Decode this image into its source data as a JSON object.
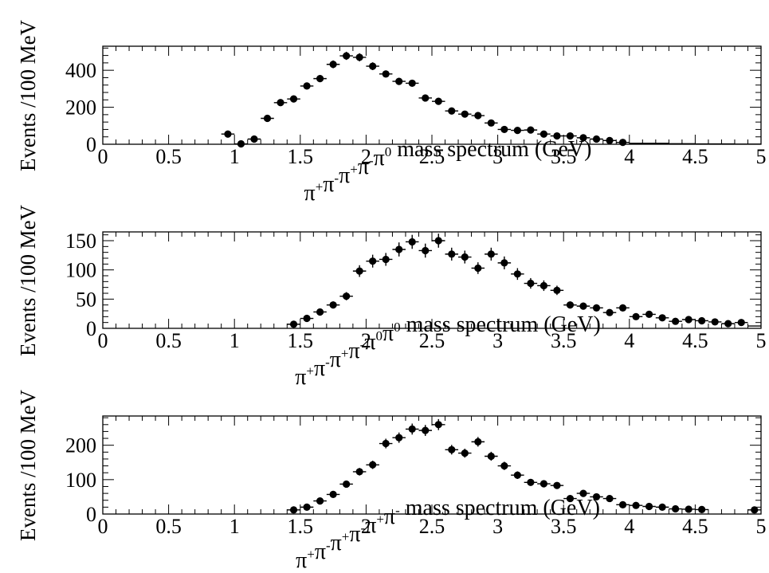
{
  "chart_data": [
    {
      "type": "scatter",
      "xlabel": "π⁺π⁻π⁺π⁻π⁰  mass spectrum (GeV)",
      "xlabel_parts": [
        {
          "t": "π",
          "sup": "+"
        },
        {
          "t": "π",
          "sup": "-"
        },
        {
          "t": "π",
          "sup": "+"
        },
        {
          "t": "π",
          "sup": "-"
        },
        {
          "t": "π",
          "sup": "0"
        },
        {
          "t": "  mass spectrum (GeV)",
          "sup": ""
        }
      ],
      "ylabel": "Events /100 MeV",
      "xlim": [
        0,
        5
      ],
      "ylim": [
        0,
        530
      ],
      "xticks": [
        0,
        0.5,
        1,
        1.5,
        2,
        2.5,
        3,
        3.5,
        4,
        4.5,
        5
      ],
      "xtick_labels": [
        "0",
        "0.5",
        "1",
        "1.5",
        "2",
        "2.5",
        "3",
        "3.5",
        "4",
        "4.5",
        "5"
      ],
      "yticks": [
        0,
        200,
        400
      ],
      "ytick_labels": [
        "0",
        "200",
        "400"
      ],
      "grid": false,
      "series": [
        {
          "x": [
            0.95,
            1.05,
            1.15,
            1.25,
            1.35,
            1.45,
            1.55,
            1.65,
            1.75,
            1.85,
            1.95,
            2.05,
            2.15,
            2.25,
            2.35,
            2.45,
            2.55,
            2.65,
            2.75,
            2.85,
            2.95,
            3.05,
            3.15,
            3.25,
            3.35,
            3.45,
            3.55,
            3.65,
            3.75,
            3.85,
            3.95,
            4.05,
            4.15,
            4.25,
            4.35,
            4.45,
            4.55,
            4.65,
            4.75,
            4.85,
            4.95
          ],
          "y": [
            55,
            2,
            28,
            140,
            225,
            245,
            315,
            355,
            432,
            478,
            470,
            422,
            380,
            340,
            330,
            250,
            232,
            180,
            163,
            155,
            115,
            80,
            75,
            77,
            55,
            45,
            45,
            35,
            28,
            20,
            10,
            5,
            5,
            5,
            3,
            3,
            2,
            2,
            2,
            1,
            1
          ],
          "yerr": [
            7,
            0,
            5,
            12,
            15,
            16,
            18,
            19,
            21,
            22,
            22,
            21,
            19,
            18,
            18,
            16,
            15,
            13,
            13,
            12,
            11,
            9,
            9,
            9,
            7,
            7,
            7,
            6,
            5,
            4,
            0,
            0,
            0,
            0,
            0,
            0,
            0,
            0,
            0,
            0,
            0
          ]
        }
      ]
    },
    {
      "type": "scatter",
      "xlabel": "π⁺π⁻π⁺π⁻π⁰π⁰  mass spectrum (GeV)",
      "xlabel_parts": [
        {
          "t": "π",
          "sup": "+"
        },
        {
          "t": "π",
          "sup": "-"
        },
        {
          "t": "π",
          "sup": "+"
        },
        {
          "t": "π",
          "sup": "-"
        },
        {
          "t": "π",
          "sup": "0"
        },
        {
          "t": "π",
          "sup": "0"
        },
        {
          "t": "  mass spectrum (GeV)",
          "sup": ""
        }
      ],
      "ylabel": "Events /100 MeV",
      "xlim": [
        0,
        5
      ],
      "ylim": [
        0,
        165
      ],
      "xticks": [
        0,
        0.5,
        1,
        1.5,
        2,
        2.5,
        3,
        3.5,
        4,
        4.5,
        5
      ],
      "xtick_labels": [
        "0",
        "0.5",
        "1",
        "1.5",
        "2",
        "2.5",
        "3",
        "3.5",
        "4",
        "4.5",
        "5"
      ],
      "yticks": [
        0,
        50,
        100,
        150
      ],
      "ytick_labels": [
        "0",
        "50",
        "100",
        "150"
      ],
      "grid": false,
      "series": [
        {
          "x": [
            1.45,
            1.55,
            1.65,
            1.75,
            1.85,
            1.95,
            2.05,
            2.15,
            2.25,
            2.35,
            2.45,
            2.55,
            2.65,
            2.75,
            2.85,
            2.95,
            3.05,
            3.15,
            3.25,
            3.35,
            3.45,
            3.55,
            3.65,
            3.75,
            3.85,
            3.95,
            4.05,
            4.15,
            4.25,
            4.35,
            4.45,
            4.55,
            4.65,
            4.75,
            4.85,
            4.95
          ],
          "y": [
            7,
            17,
            28,
            40,
            55,
            98,
            115,
            118,
            135,
            148,
            133,
            150,
            127,
            122,
            103,
            127,
            112,
            93,
            77,
            73,
            65,
            40,
            38,
            35,
            27,
            35,
            20,
            24,
            18,
            12,
            15,
            13,
            11,
            8,
            10,
            4
          ],
          "yerr": [
            3,
            4,
            5,
            6,
            7,
            10,
            11,
            11,
            12,
            12,
            12,
            12,
            11,
            11,
            10,
            11,
            11,
            10,
            9,
            9,
            8,
            6,
            6,
            6,
            5,
            6,
            4,
            5,
            4,
            3,
            4,
            4,
            3,
            3,
            3,
            0
          ]
        }
      ]
    },
    {
      "type": "scatter",
      "xlabel": "π⁺π⁻π⁺π⁻π⁺π⁻  mass spectrum (GeV)",
      "xlabel_parts": [
        {
          "t": "π",
          "sup": "+"
        },
        {
          "t": "π",
          "sup": "-"
        },
        {
          "t": "π",
          "sup": "+"
        },
        {
          "t": "π",
          "sup": "-"
        },
        {
          "t": "π",
          "sup": "+"
        },
        {
          "t": "π",
          "sup": "-"
        },
        {
          "t": "  mass spectrum (GeV)",
          "sup": ""
        }
      ],
      "ylabel": "Events /100 MeV",
      "xlim": [
        0,
        5
      ],
      "ylim": [
        0,
        285
      ],
      "xticks": [
        0,
        0.5,
        1,
        1.5,
        2,
        2.5,
        3,
        3.5,
        4,
        4.5,
        5
      ],
      "xtick_labels": [
        "0",
        "0.5",
        "1",
        "1.5",
        "2",
        "2.5",
        "3",
        "3.5",
        "4",
        "4.5",
        "5"
      ],
      "yticks": [
        0,
        100,
        200
      ],
      "ytick_labels": [
        "0",
        "100",
        "200"
      ],
      "grid": false,
      "series": [
        {
          "x": [
            1.45,
            1.55,
            1.65,
            1.75,
            1.85,
            1.95,
            2.05,
            2.15,
            2.25,
            2.35,
            2.45,
            2.55,
            2.65,
            2.75,
            2.85,
            2.95,
            3.05,
            3.15,
            3.25,
            3.35,
            3.45,
            3.55,
            3.65,
            3.75,
            3.85,
            3.95,
            4.05,
            4.15,
            4.25,
            4.35,
            4.45,
            4.55,
            4.95
          ],
          "y": [
            12,
            20,
            38,
            57,
            87,
            123,
            143,
            205,
            222,
            247,
            243,
            260,
            187,
            177,
            210,
            168,
            140,
            113,
            92,
            88,
            83,
            45,
            60,
            50,
            45,
            27,
            25,
            22,
            20,
            15,
            14,
            13,
            12
          ],
          "yerr": [
            3,
            4,
            6,
            8,
            9,
            11,
            12,
            14,
            15,
            16,
            16,
            16,
            14,
            13,
            14,
            13,
            12,
            11,
            10,
            9,
            9,
            7,
            8,
            7,
            7,
            5,
            5,
            5,
            4,
            4,
            4,
            4,
            3
          ]
        }
      ]
    }
  ]
}
